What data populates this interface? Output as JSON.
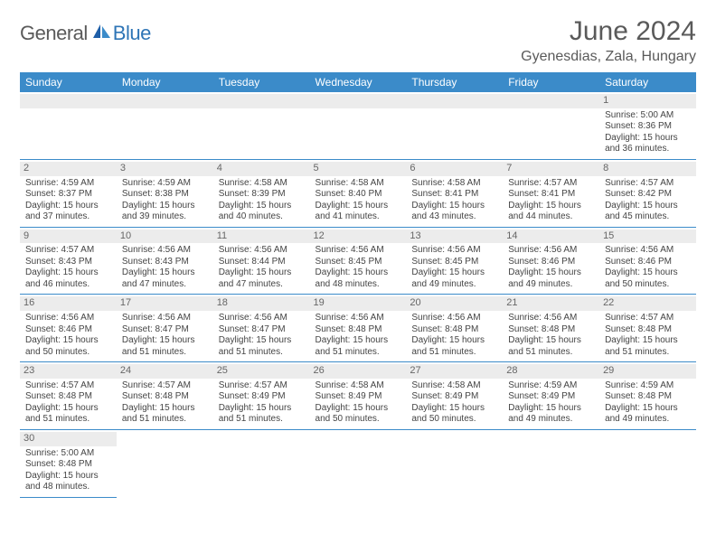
{
  "brand": {
    "part1": "General",
    "part2": "Blue"
  },
  "title": "June 2024",
  "location": "Gyenesdias, Zala, Hungary",
  "colors": {
    "header_bg": "#3b8bc9",
    "header_text": "#ffffff",
    "daynum_bg": "#ececec",
    "rule": "#3b8bc9",
    "brand_gray": "#5a5a5a",
    "brand_blue": "#2e75b6"
  },
  "weekdays": [
    "Sunday",
    "Monday",
    "Tuesday",
    "Wednesday",
    "Thursday",
    "Friday",
    "Saturday"
  ],
  "days": {
    "1": {
      "sunrise": "5:00 AM",
      "sunset": "8:36 PM",
      "daylight": "15 hours and 36 minutes."
    },
    "2": {
      "sunrise": "4:59 AM",
      "sunset": "8:37 PM",
      "daylight": "15 hours and 37 minutes."
    },
    "3": {
      "sunrise": "4:59 AM",
      "sunset": "8:38 PM",
      "daylight": "15 hours and 39 minutes."
    },
    "4": {
      "sunrise": "4:58 AM",
      "sunset": "8:39 PM",
      "daylight": "15 hours and 40 minutes."
    },
    "5": {
      "sunrise": "4:58 AM",
      "sunset": "8:40 PM",
      "daylight": "15 hours and 41 minutes."
    },
    "6": {
      "sunrise": "4:58 AM",
      "sunset": "8:41 PM",
      "daylight": "15 hours and 43 minutes."
    },
    "7": {
      "sunrise": "4:57 AM",
      "sunset": "8:41 PM",
      "daylight": "15 hours and 44 minutes."
    },
    "8": {
      "sunrise": "4:57 AM",
      "sunset": "8:42 PM",
      "daylight": "15 hours and 45 minutes."
    },
    "9": {
      "sunrise": "4:57 AM",
      "sunset": "8:43 PM",
      "daylight": "15 hours and 46 minutes."
    },
    "10": {
      "sunrise": "4:56 AM",
      "sunset": "8:43 PM",
      "daylight": "15 hours and 47 minutes."
    },
    "11": {
      "sunrise": "4:56 AM",
      "sunset": "8:44 PM",
      "daylight": "15 hours and 47 minutes."
    },
    "12": {
      "sunrise": "4:56 AM",
      "sunset": "8:45 PM",
      "daylight": "15 hours and 48 minutes."
    },
    "13": {
      "sunrise": "4:56 AM",
      "sunset": "8:45 PM",
      "daylight": "15 hours and 49 minutes."
    },
    "14": {
      "sunrise": "4:56 AM",
      "sunset": "8:46 PM",
      "daylight": "15 hours and 49 minutes."
    },
    "15": {
      "sunrise": "4:56 AM",
      "sunset": "8:46 PM",
      "daylight": "15 hours and 50 minutes."
    },
    "16": {
      "sunrise": "4:56 AM",
      "sunset": "8:46 PM",
      "daylight": "15 hours and 50 minutes."
    },
    "17": {
      "sunrise": "4:56 AM",
      "sunset": "8:47 PM",
      "daylight": "15 hours and 51 minutes."
    },
    "18": {
      "sunrise": "4:56 AM",
      "sunset": "8:47 PM",
      "daylight": "15 hours and 51 minutes."
    },
    "19": {
      "sunrise": "4:56 AM",
      "sunset": "8:48 PM",
      "daylight": "15 hours and 51 minutes."
    },
    "20": {
      "sunrise": "4:56 AM",
      "sunset": "8:48 PM",
      "daylight": "15 hours and 51 minutes."
    },
    "21": {
      "sunrise": "4:56 AM",
      "sunset": "8:48 PM",
      "daylight": "15 hours and 51 minutes."
    },
    "22": {
      "sunrise": "4:57 AM",
      "sunset": "8:48 PM",
      "daylight": "15 hours and 51 minutes."
    },
    "23": {
      "sunrise": "4:57 AM",
      "sunset": "8:48 PM",
      "daylight": "15 hours and 51 minutes."
    },
    "24": {
      "sunrise": "4:57 AM",
      "sunset": "8:48 PM",
      "daylight": "15 hours and 51 minutes."
    },
    "25": {
      "sunrise": "4:57 AM",
      "sunset": "8:49 PM",
      "daylight": "15 hours and 51 minutes."
    },
    "26": {
      "sunrise": "4:58 AM",
      "sunset": "8:49 PM",
      "daylight": "15 hours and 50 minutes."
    },
    "27": {
      "sunrise": "4:58 AM",
      "sunset": "8:49 PM",
      "daylight": "15 hours and 50 minutes."
    },
    "28": {
      "sunrise": "4:59 AM",
      "sunset": "8:49 PM",
      "daylight": "15 hours and 49 minutes."
    },
    "29": {
      "sunrise": "4:59 AM",
      "sunset": "8:48 PM",
      "daylight": "15 hours and 49 minutes."
    },
    "30": {
      "sunrise": "5:00 AM",
      "sunset": "8:48 PM",
      "daylight": "15 hours and 48 minutes."
    }
  },
  "labels": {
    "sunrise": "Sunrise: ",
    "sunset": "Sunset: ",
    "daylight": "Daylight: "
  },
  "layout": {
    "first_weekday_index": 6,
    "num_days": 30
  }
}
